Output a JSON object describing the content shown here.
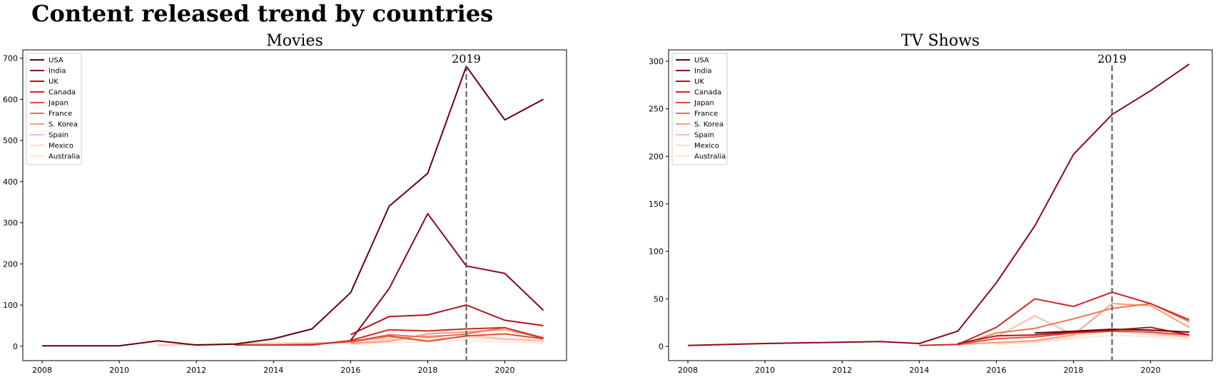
{
  "suptitle": "Content released trend by countries",
  "chart_data": [
    {
      "type": "line",
      "title": "Movies",
      "xlabel": "",
      "ylabel": "",
      "xlim": [
        2007.5,
        2021.6
      ],
      "ylim": [
        -35,
        720
      ],
      "xticks": [
        2008,
        2010,
        2012,
        2014,
        2016,
        2018,
        2020
      ],
      "yticks": [
        0,
        100,
        200,
        300,
        400,
        500,
        600,
        700
      ],
      "legend": "top-left",
      "grid": false,
      "annotation": {
        "text": "2019",
        "x": 2019
      },
      "series": [
        {
          "name": "USA",
          "color": "#67000d",
          "points": [
            [
              2008,
              1
            ],
            [
              2009,
              1
            ],
            [
              2010,
              1
            ],
            [
              2011,
              13
            ],
            [
              2012,
              3
            ],
            [
              2013,
              5
            ],
            [
              2014,
              18
            ],
            [
              2015,
              42
            ],
            [
              2016,
              130
            ],
            [
              2017,
              340
            ],
            [
              2018,
              420
            ],
            [
              2019,
              680
            ],
            [
              2020,
              550
            ],
            [
              2021,
              600
            ]
          ]
        },
        {
          "name": "India",
          "color": "#8b0a18",
          "points": [
            [
              2016,
              14
            ],
            [
              2017,
              140
            ],
            [
              2018,
              322
            ],
            [
              2019,
              195
            ],
            [
              2020,
              177
            ],
            [
              2021,
              87
            ]
          ]
        },
        {
          "name": "UK",
          "color": "#b0141f",
          "points": [
            [
              2016,
              28
            ],
            [
              2017,
              72
            ],
            [
              2018,
              76
            ],
            [
              2019,
              100
            ],
            [
              2020,
              63
            ],
            [
              2021,
              50
            ]
          ]
        },
        {
          "name": "Canada",
          "color": "#cb2a28",
          "points": [
            [
              2013,
              3
            ],
            [
              2014,
              3
            ],
            [
              2015,
              3
            ],
            [
              2016,
              14
            ],
            [
              2017,
              40
            ],
            [
              2018,
              37
            ],
            [
              2019,
              42
            ],
            [
              2020,
              45
            ],
            [
              2021,
              20
            ]
          ]
        },
        {
          "name": "Japan",
          "color": "#e34a33",
          "points": [
            [
              2016,
              12
            ],
            [
              2017,
              25
            ],
            [
              2018,
              12
            ],
            [
              2019,
              25
            ],
            [
              2020,
              30
            ],
            [
              2021,
              18
            ]
          ]
        },
        {
          "name": "France",
          "color": "#f5714f",
          "points": [
            [
              2014,
              3
            ],
            [
              2015,
              5
            ],
            [
              2016,
              10
            ],
            [
              2017,
              28
            ],
            [
              2018,
              22
            ],
            [
              2019,
              30
            ],
            [
              2020,
              45
            ],
            [
              2021,
              18
            ]
          ]
        },
        {
          "name": "S. Korea",
          "color": "#fb9c78",
          "points": [
            [
              2016,
              7
            ],
            [
              2017,
              12
            ],
            [
              2018,
              30
            ],
            [
              2019,
              35
            ],
            [
              2020,
              40
            ],
            [
              2021,
              20
            ]
          ]
        },
        {
          "name": "Spain",
          "color": "#fcbea5",
          "points": [
            [
              2011,
              2
            ],
            [
              2012,
              4
            ],
            [
              2013,
              6
            ],
            [
              2014,
              7
            ],
            [
              2015,
              8
            ],
            [
              2016,
              10
            ],
            [
              2017,
              20
            ],
            [
              2018,
              25
            ],
            [
              2019,
              27
            ],
            [
              2020,
              18
            ],
            [
              2021,
              14
            ]
          ]
        },
        {
          "name": "Mexico",
          "color": "#fddbcc",
          "points": [
            [
              2016,
              5
            ],
            [
              2017,
              15
            ],
            [
              2018,
              18
            ],
            [
              2019,
              22
            ],
            [
              2020,
              15
            ],
            [
              2021,
              12
            ]
          ]
        },
        {
          "name": "Australia",
          "color": "#fff0e8",
          "points": [
            [
              2016,
              4
            ],
            [
              2017,
              8
            ],
            [
              2018,
              12
            ],
            [
              2019,
              14
            ],
            [
              2020,
              10
            ],
            [
              2021,
              8
            ]
          ]
        }
      ]
    },
    {
      "type": "line",
      "title": "TV Shows",
      "xlabel": "",
      "ylabel": "",
      "xlim": [
        2007.5,
        2021.6
      ],
      "ylim": [
        -15,
        312
      ],
      "xticks": [
        2008,
        2010,
        2012,
        2014,
        2016,
        2018,
        2020
      ],
      "yticks": [
        0,
        50,
        100,
        150,
        200,
        250,
        300
      ],
      "legend": "top-left",
      "grid": false,
      "annotation": {
        "text": "2019",
        "x": 2019
      },
      "series": [
        {
          "name": "USA",
          "color": "#67000d",
          "points": [
            [
              2017,
              14
            ],
            [
              2018,
              16
            ],
            [
              2019,
              18
            ],
            [
              2020,
              17
            ],
            [
              2021,
              15
            ]
          ]
        },
        {
          "name": "India",
          "color": "#8b0a18",
          "points": [
            [
              2008,
              1
            ],
            [
              2010,
              3
            ],
            [
              2013,
              5
            ],
            [
              2014,
              3
            ],
            [
              2015,
              16
            ],
            [
              2016,
              67
            ],
            [
              2017,
              127
            ],
            [
              2018,
              202
            ],
            [
              2019,
              244
            ],
            [
              2020,
              269
            ],
            [
              2021,
              297
            ]
          ]
        },
        {
          "name": "UK",
          "color": "#b0141f",
          "points": [
            [
              2015,
              3
            ],
            [
              2016,
              11
            ],
            [
              2017,
              12
            ],
            [
              2018,
              15
            ],
            [
              2019,
              17
            ],
            [
              2020,
              20
            ],
            [
              2021,
              12
            ]
          ]
        },
        {
          "name": "Canada",
          "color": "#cb2a28",
          "points": [
            [
              2014,
              1
            ],
            [
              2015,
              2
            ],
            [
              2016,
              20
            ],
            [
              2017,
              50
            ],
            [
              2018,
              42
            ],
            [
              2019,
              57
            ],
            [
              2020,
              45
            ],
            [
              2021,
              28
            ]
          ]
        },
        {
          "name": "Japan",
          "color": "#e34a33",
          "points": [
            [
              2015,
              2
            ],
            [
              2016,
              8
            ],
            [
              2017,
              10
            ],
            [
              2018,
              14
            ],
            [
              2019,
              16
            ],
            [
              2020,
              15
            ],
            [
              2021,
              12
            ]
          ]
        },
        {
          "name": "France",
          "color": "#f5714f",
          "points": [
            [
              2015,
              1
            ],
            [
              2016,
              14
            ],
            [
              2017,
              19
            ],
            [
              2018,
              29
            ],
            [
              2019,
              40
            ],
            [
              2020,
              45
            ],
            [
              2021,
              26
            ]
          ]
        },
        {
          "name": "S. Korea",
          "color": "#fb9c78",
          "points": [
            [
              2015,
              2
            ],
            [
              2016,
              4
            ],
            [
              2017,
              6
            ],
            [
              2018,
              12
            ],
            [
              2019,
              45
            ],
            [
              2020,
              43
            ],
            [
              2021,
              20
            ]
          ]
        },
        {
          "name": "Spain",
          "color": "#fcbea5",
          "points": [
            [
              2016,
              10
            ],
            [
              2017,
              32
            ],
            [
              2018,
              12
            ],
            [
              2019,
              18
            ],
            [
              2020,
              14
            ],
            [
              2021,
              10
            ]
          ]
        },
        {
          "name": "Mexico",
          "color": "#fddbcc",
          "points": [
            [
              2016,
              3
            ],
            [
              2017,
              5
            ],
            [
              2018,
              10
            ],
            [
              2019,
              16
            ],
            [
              2020,
              12
            ],
            [
              2021,
              10
            ]
          ]
        },
        {
          "name": "Australia",
          "color": "#fff0e8",
          "points": [
            [
              2016,
              2
            ],
            [
              2017,
              4
            ],
            [
              2018,
              8
            ],
            [
              2019,
              12
            ],
            [
              2020,
              10
            ],
            [
              2021,
              8
            ]
          ]
        }
      ]
    }
  ]
}
